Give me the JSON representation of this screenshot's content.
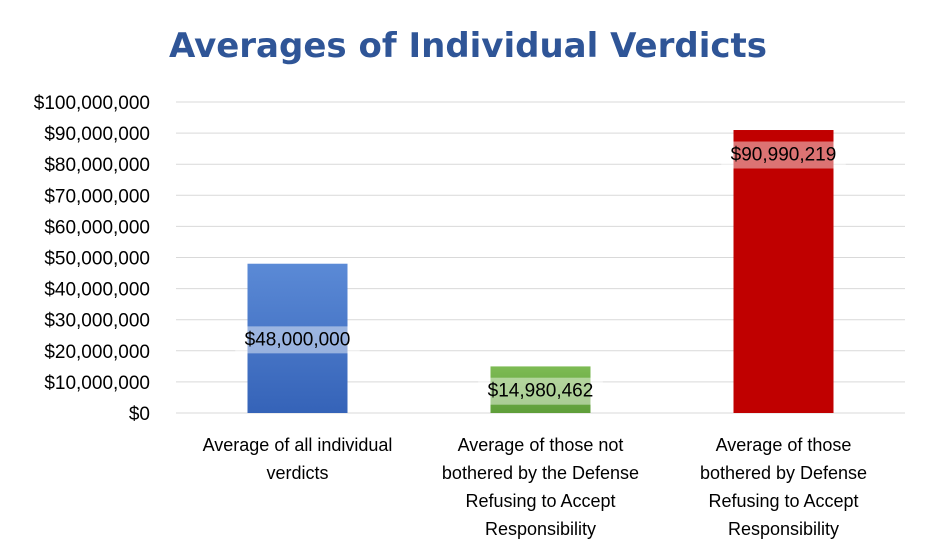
{
  "chart_data": {
    "type": "bar",
    "title": "Averages of Individual Verdicts",
    "xlabel": "",
    "ylabel": "",
    "ylim": [
      0,
      100000000
    ],
    "y_tick_step": 10000000,
    "y_tick_labels": [
      "$0",
      "$10,000,000",
      "$20,000,000",
      "$30,000,000",
      "$40,000,000",
      "$50,000,000",
      "$60,000,000",
      "$70,000,000",
      "$80,000,000",
      "$90,000,000",
      "$100,000,000"
    ],
    "grid": true,
    "legend": "none",
    "categories": [
      "Average of all individual verdicts",
      "Average of those not bothered by the Defense Refusing to Accept Responsibility",
      "Average of those bothered by Defense Refusing to Accept Responsibility"
    ],
    "category_lines": [
      [
        "Average of all individual",
        "verdicts"
      ],
      [
        "Average of those not",
        "bothered by the Defense",
        "Refusing to Accept",
        "Responsibility"
      ],
      [
        "Average of those",
        "bothered by Defense",
        "Refusing to Accept",
        "Responsibility"
      ]
    ],
    "values": [
      48000000,
      14980462,
      90990219
    ],
    "data_labels": [
      "$48,000,000",
      "$14,980,462",
      "$90,990,219"
    ],
    "colors": [
      "#4472c4",
      "#70ad47",
      "#c00000"
    ]
  }
}
